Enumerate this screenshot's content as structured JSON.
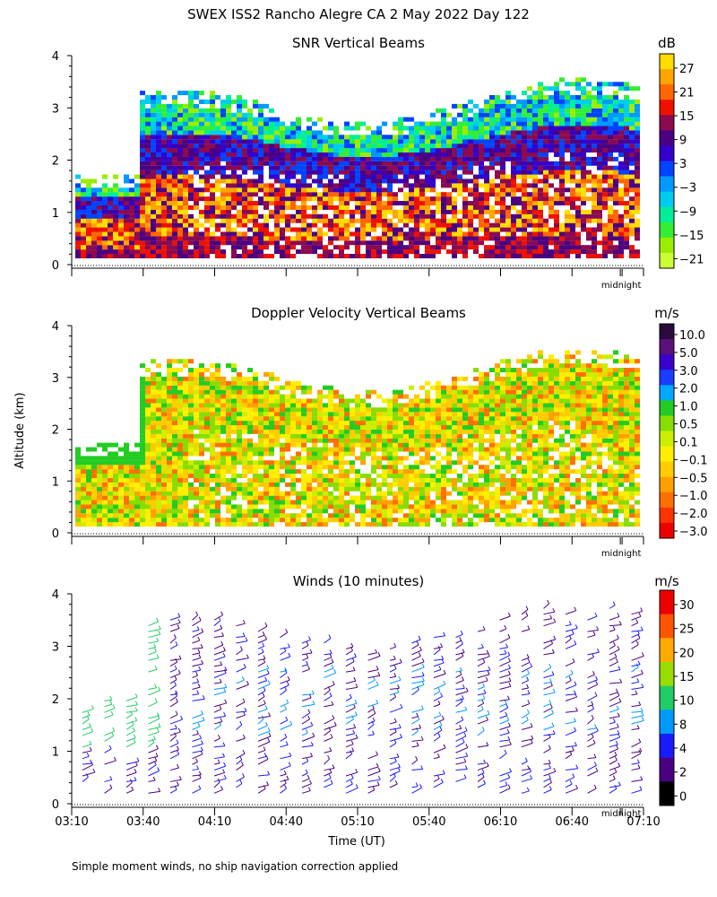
{
  "figure": {
    "title": "SWEX ISS2 Rancho Alegre CA   2 May 2022 Day 122",
    "ylabel": "Altitude (km)",
    "xlabel": "Time (UT)",
    "footnote": "Simple moment winds, no ship navigation correction applied",
    "midnight_label": "midnight",
    "x_ticks": [
      "03:10",
      "03:40",
      "04:10",
      "04:40",
      "05:10",
      "05:40",
      "06:10",
      "06:40",
      "07:10"
    ],
    "y_ticks": [
      "0",
      "1",
      "2",
      "3",
      "4"
    ]
  },
  "chart_data": [
    {
      "type": "heatmap",
      "title": "SNR Vertical Beams",
      "colorbar_unit": "dB",
      "colorbar_labels": [
        "27",
        "21",
        "15",
        "9",
        "3",
        "−3",
        "−9",
        "−15",
        "−21"
      ],
      "colorbar_colors": [
        "#ffdd00",
        "#ffa500",
        "#ff6600",
        "#ee1100",
        "#8b0a50",
        "#4b0082",
        "#3300cc",
        "#0044ff",
        "#0099ff",
        "#00ccee",
        "#00ee99",
        "#33ee33",
        "#99ee00",
        "#ccff33"
      ],
      "xlim": [
        "03:10",
        "07:10"
      ],
      "ylim": [
        0,
        4
      ],
      "ylabel": "Altitude (km)"
    },
    {
      "type": "heatmap",
      "title": "Doppler Velocity Vertical Beams",
      "colorbar_unit": "m/s",
      "colorbar_labels": [
        "10.0",
        "5.0",
        "3.0",
        "2.0",
        "1.0",
        "0.5",
        "0.1",
        "−0.1",
        "−0.5",
        "−1.0",
        "−2.0",
        "−3.0"
      ],
      "colorbar_colors": [
        "#2b0a3d",
        "#5a0f7a",
        "#3a00cc",
        "#1a3cff",
        "#00a8ff",
        "#22cc22",
        "#88dd00",
        "#ccee00",
        "#ffee00",
        "#ffcc00",
        "#ffa000",
        "#ff7000",
        "#ff3300",
        "#ee0000"
      ],
      "xlim": [
        "03:10",
        "07:10"
      ],
      "ylim": [
        0,
        4
      ]
    },
    {
      "type": "scatter",
      "title": "Winds (10 minutes)",
      "colorbar_unit": "m/s",
      "colorbar_labels": [
        "30",
        "25",
        "20",
        "15",
        "10",
        "8",
        "4",
        "2",
        "0"
      ],
      "colorbar_colors": [
        "#ee0000",
        "#ff5500",
        "#ffaa00",
        "#99dd00",
        "#22cc66",
        "#0099ff",
        "#1a1aff",
        "#4b0082",
        "#000000"
      ],
      "xlim": [
        "03:10",
        "07:10"
      ],
      "ylim": [
        0,
        4
      ],
      "xlabel": "Time (UT)"
    }
  ]
}
